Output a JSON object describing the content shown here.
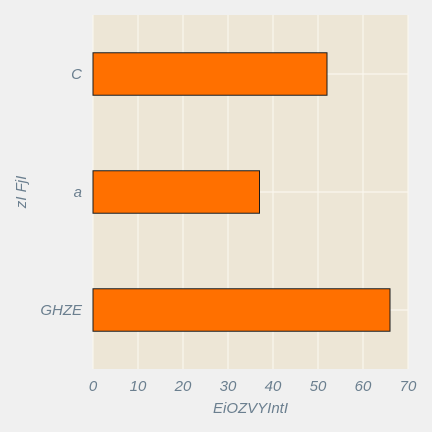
{
  "chart_data": {
    "type": "bar",
    "orientation": "horizontal",
    "categories": [
      "GHZE",
      "a",
      "C"
    ],
    "values": [
      66,
      37,
      52
    ],
    "xlabel": "EiOZVYIntI",
    "ylabel": "zI FjI",
    "xlim": [
      0,
      70
    ],
    "xticks": [
      0,
      10,
      20,
      30,
      40,
      50,
      60,
      70
    ],
    "grid": true,
    "colors": {
      "bar_fill": "#ff7000",
      "bar_edge": "#1a1a1a",
      "plot_background": "#ede6d6",
      "page_background": "#f0f0f0",
      "grid": "#faf6ee",
      "text": "#6b7f8f"
    }
  }
}
